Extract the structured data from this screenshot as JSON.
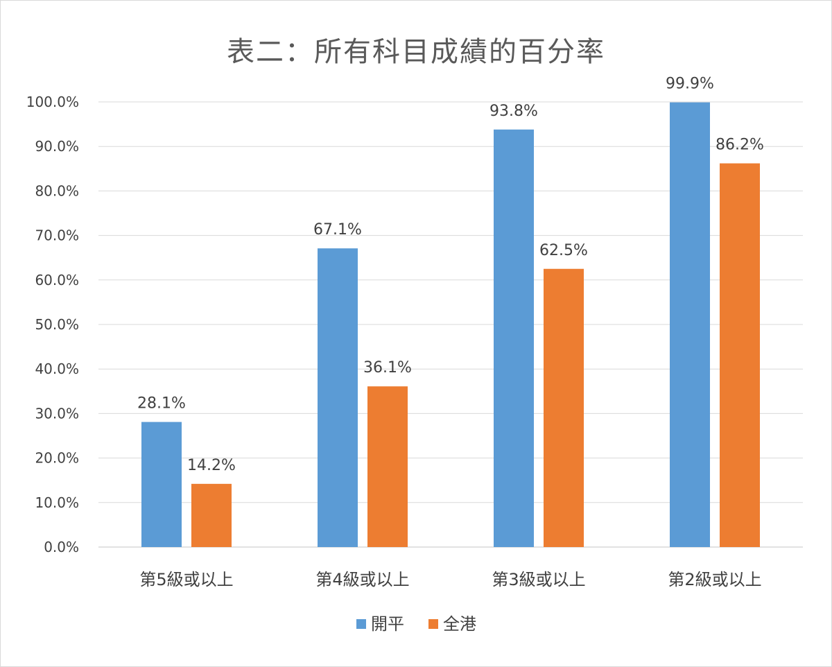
{
  "chart_data": {
    "type": "bar",
    "title": "表二：所有科目成績的百分率",
    "categories": [
      "第5級或以上",
      "第4級或以上",
      "第3級或以上",
      "第2級或以上"
    ],
    "series": [
      {
        "name": "開平",
        "color": "#5b9bd5",
        "values": [
          28.1,
          67.1,
          93.8,
          99.9
        ]
      },
      {
        "name": "全港",
        "color": "#ed7d31",
        "values": [
          14.2,
          36.1,
          62.5,
          86.2
        ]
      }
    ],
    "value_labels": [
      [
        "28.1%",
        "67.1%",
        "93.8%",
        "99.9%"
      ],
      [
        "14.2%",
        "36.1%",
        "62.5%",
        "86.2%"
      ]
    ],
    "y_ticks": [
      "0.0%",
      "10.0%",
      "20.0%",
      "30.0%",
      "40.0%",
      "50.0%",
      "60.0%",
      "70.0%",
      "80.0%",
      "90.0%",
      "100.0%"
    ],
    "ylim": [
      0,
      100
    ],
    "xlabel": "",
    "ylabel": "",
    "grid": true,
    "legend_position": "bottom-center",
    "gridline_color": "#d9d9d9",
    "text_color": "#404040"
  }
}
